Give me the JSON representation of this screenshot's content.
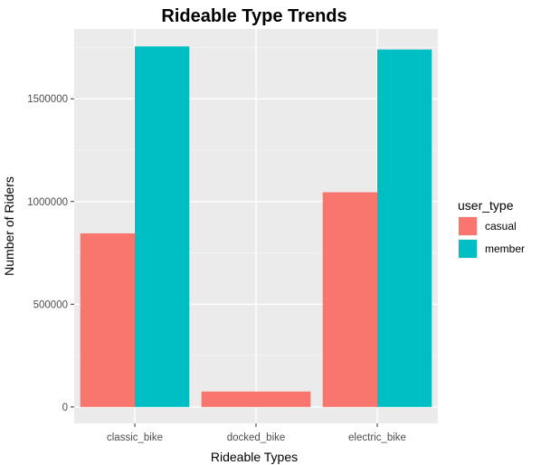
{
  "chart_data": {
    "type": "bar",
    "title": "Rideable Type Trends",
    "xlabel": "Rideable Types",
    "ylabel": "Number of Riders",
    "categories": [
      "classic_bike",
      "docked_bike",
      "electric_bike"
    ],
    "series": [
      {
        "name": "casual",
        "color": "#F8766D",
        "values": [
          845000,
          75000,
          1045000
        ]
      },
      {
        "name": "member",
        "color": "#00BFC4",
        "values": [
          1755000,
          null,
          1740000
        ]
      }
    ],
    "y_ticks": [
      0,
      500000,
      1000000,
      1500000
    ],
    "y_tick_labels": [
      "0",
      "500000",
      "1000000",
      "1500000"
    ],
    "ylim": [
      -80000,
      1840000
    ],
    "legend": {
      "title": "user_type",
      "position": "right"
    },
    "grid": true,
    "panel_background": "#EBEBEB",
    "grid_color": "#FFFFFF"
  }
}
